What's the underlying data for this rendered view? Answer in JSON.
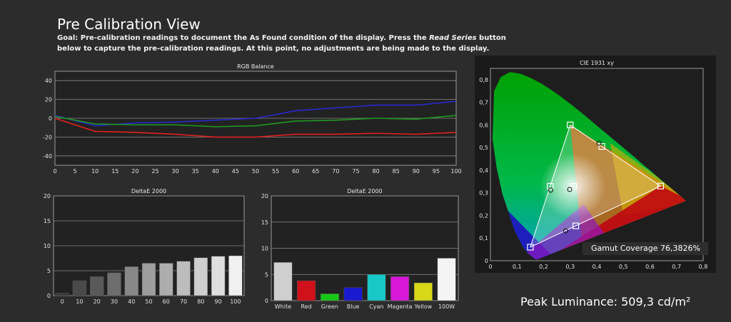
{
  "page": {
    "title": "Pre Calibration View",
    "goal_prefix": "Goal: Pre-calibration readings to document the As Found condition of the display. Press the ",
    "goal_emph": "Read Series",
    "goal_suffix": " button below to capture the pre-calibration readings. At this point, no adjustments are being made to the display.",
    "peak_luminance": "Peak Luminance: 509,3 cd/m²",
    "gamut_coverage": "Gamut Coverage 76,3826%"
  },
  "colors": {
    "red": "#e02020",
    "green": "#1f9a1f",
    "blue": "#2828d0",
    "plot_bg": "#222222",
    "grid": "#8a8a8a"
  },
  "chart_data": [
    {
      "type": "line",
      "title": "RGB Balance",
      "x": [
        0,
        10,
        20,
        30,
        40,
        50,
        60,
        70,
        80,
        90,
        100
      ],
      "xlim": [
        0,
        100
      ],
      "ylim": [
        -50,
        50
      ],
      "yticks": [
        40,
        20,
        0,
        -20,
        -40
      ],
      "xticks": [
        0,
        5,
        10,
        15,
        20,
        25,
        30,
        35,
        40,
        45,
        50,
        55,
        60,
        65,
        70,
        75,
        80,
        85,
        90,
        95,
        100
      ],
      "series": [
        {
          "color": "#2828d0",
          "values": [
            3,
            -8,
            -5,
            -4,
            -2,
            0,
            8,
            11,
            14,
            14,
            18
          ]
        },
        {
          "color": "#1f9a1f",
          "values": [
            2,
            -6,
            -7,
            -7,
            -9,
            -8,
            -3,
            -2,
            0,
            -1,
            3
          ]
        },
        {
          "color": "#e02020",
          "values": [
            0,
            -14,
            -15,
            -17,
            -20,
            -20,
            -17,
            -17,
            -16,
            -17,
            -15
          ]
        }
      ]
    },
    {
      "type": "bar",
      "title": "DeltaE 2000",
      "categories": [
        "0",
        "10",
        "20",
        "30",
        "40",
        "50",
        "60",
        "70",
        "80",
        "90",
        "100"
      ],
      "values": [
        0.5,
        3.0,
        3.8,
        4.6,
        5.8,
        6.5,
        6.5,
        6.9,
        7.6,
        7.9,
        8.0
      ],
      "ylim": [
        0,
        20
      ],
      "yticks": [
        20,
        15,
        10,
        5,
        0
      ],
      "colors": [
        "#3a3a3a",
        "#4a4a4a",
        "#5a5a5a",
        "#6e6e6e",
        "#888888",
        "#9d9d9d",
        "#adadad",
        "#bdbdbd",
        "#cecece",
        "#dedede",
        "#f0f0f0"
      ]
    },
    {
      "type": "bar",
      "title": "DeltaE 2000",
      "categories": [
        "White",
        "Red",
        "Green",
        "Blue",
        "Cyan",
        "Magenta",
        "Yellow",
        "100W"
      ],
      "values": [
        7.3,
        3.8,
        1.3,
        2.5,
        5.0,
        4.6,
        3.4,
        8.1
      ],
      "ylim": [
        0,
        20
      ],
      "yticks": [
        20,
        15,
        10,
        5,
        0
      ],
      "colors": [
        "#cfcfcf",
        "#d0101a",
        "#18c818",
        "#1a1ad0",
        "#18c8c8",
        "#d818d8",
        "#d8d818",
        "#f4f4f4"
      ]
    },
    {
      "type": "scatter",
      "title": "CIE 1931 xy",
      "xlim": [
        0,
        0.8
      ],
      "ylim": [
        0,
        0.85
      ],
      "xticks": [
        "0",
        "0,1",
        "0,2",
        "0,3",
        "0,4",
        "0,5",
        "0,6",
        "0,7",
        "0,8"
      ],
      "yticks": [
        "0,8",
        "0,7",
        "0,6",
        "0,5",
        "0,4",
        "0,3",
        "0,2",
        "0,1",
        "0"
      ],
      "target_points": [
        {
          "x": 0.64,
          "y": 0.33
        },
        {
          "x": 0.3,
          "y": 0.6
        },
        {
          "x": 0.15,
          "y": 0.06
        },
        {
          "x": 0.225,
          "y": 0.329
        },
        {
          "x": 0.321,
          "y": 0.154
        },
        {
          "x": 0.419,
          "y": 0.505
        },
        {
          "x": 0.3127,
          "y": 0.329
        }
      ],
      "measured_points": [
        {
          "x": 0.408,
          "y": 0.52
        },
        {
          "x": 0.227,
          "y": 0.312
        },
        {
          "x": 0.283,
          "y": 0.132
        },
        {
          "x": 0.298,
          "y": 0.315
        }
      ]
    }
  ]
}
